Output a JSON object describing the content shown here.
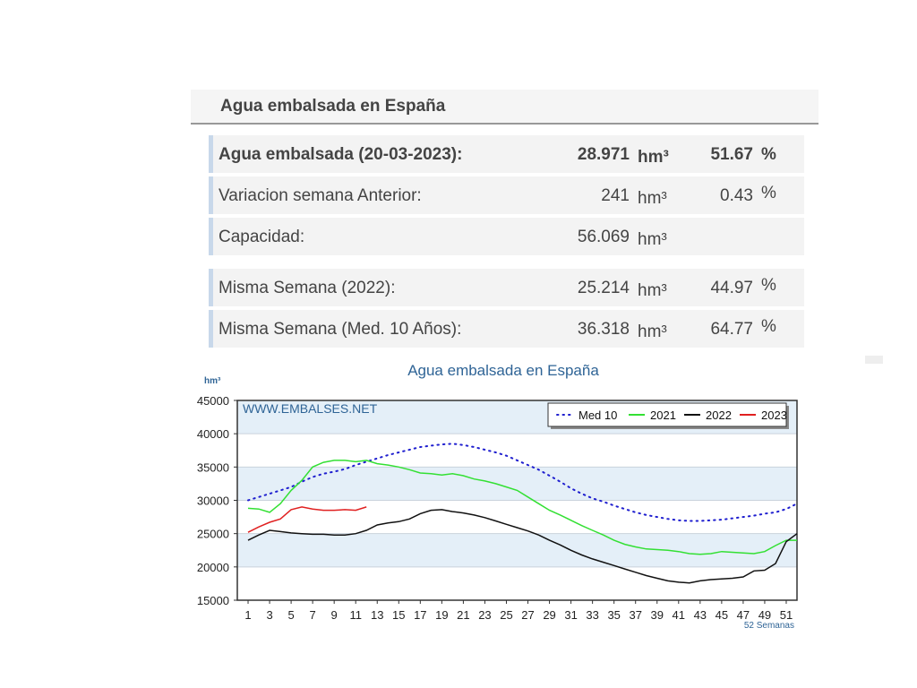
{
  "header": {
    "title": "Agua embalsada en España"
  },
  "table": {
    "rows": [
      {
        "label": "Agua embalsada (20-03-2023):",
        "value": "28.971",
        "unit": "hm³",
        "percent": "51.67",
        "percent_unit": "%"
      },
      {
        "label": "Variacion semana Anterior:",
        "value": "241",
        "unit": "hm³",
        "percent": "0.43",
        "percent_unit": "%"
      },
      {
        "label": "Capacidad:",
        "value": "56.069",
        "unit": "hm³"
      },
      {
        "label": "Misma Semana (2022):",
        "value": "25.214",
        "unit": "hm³",
        "percent": "44.97",
        "percent_unit": "%"
      },
      {
        "label": "Misma Semana (Med. 10 Años):",
        "value": "36.318",
        "unit": "hm³",
        "percent": "64.77",
        "percent_unit": "%"
      }
    ]
  },
  "chart_data": {
    "type": "line",
    "title": "Agua embalsada en España",
    "y_label": "hm³",
    "x_label": "52 Semanas",
    "annotation": "WWW.EMBALSES.NET",
    "x": [
      1,
      2,
      3,
      4,
      5,
      6,
      7,
      8,
      9,
      10,
      11,
      12,
      13,
      14,
      15,
      16,
      17,
      18,
      19,
      20,
      21,
      22,
      23,
      24,
      25,
      26,
      27,
      28,
      29,
      30,
      31,
      32,
      33,
      34,
      35,
      36,
      37,
      38,
      39,
      40,
      41,
      42,
      43,
      44,
      45,
      46,
      47,
      48,
      49,
      50,
      51,
      52
    ],
    "xlim": [
      0,
      52
    ],
    "xticks": [
      1,
      3,
      5,
      7,
      9,
      11,
      13,
      15,
      17,
      19,
      21,
      23,
      25,
      27,
      29,
      31,
      33,
      35,
      37,
      39,
      41,
      43,
      45,
      47,
      49,
      51
    ],
    "ylim": [
      15000,
      45000
    ],
    "yticks": [
      15000,
      20000,
      25000,
      30000,
      35000,
      40000,
      45000
    ],
    "grid": true,
    "legend": "top-right",
    "series": [
      {
        "name": "Med 10",
        "color": "#1f1fcf",
        "style": "dotted",
        "values": [
          30000,
          30500,
          31000,
          31500,
          32000,
          32800,
          33500,
          34000,
          34300,
          34700,
          35300,
          35800,
          36300,
          36800,
          37200,
          37600,
          38000,
          38200,
          38400,
          38500,
          38300,
          38000,
          37600,
          37200,
          36700,
          36000,
          35300,
          34600,
          33700,
          32800,
          31800,
          31000,
          30300,
          29800,
          29200,
          28700,
          28200,
          27800,
          27500,
          27200,
          27000,
          26900,
          26900,
          27000,
          27100,
          27300,
          27500,
          27700,
          28000,
          28200,
          28700,
          29500
        ]
      },
      {
        "name": "2021",
        "color": "#33e033",
        "style": "solid",
        "values": [
          28800,
          28700,
          28200,
          29500,
          31500,
          33000,
          35000,
          35700,
          36000,
          36000,
          35800,
          36000,
          35500,
          35300,
          35000,
          34600,
          34100,
          34000,
          33800,
          34000,
          33700,
          33200,
          32900,
          32500,
          32000,
          31500,
          30500,
          29500,
          28500,
          27800,
          27000,
          26200,
          25500,
          24800,
          24000,
          23400,
          23000,
          22700,
          22600,
          22500,
          22300,
          22000,
          21900,
          22000,
          22300,
          22200,
          22100,
          22000,
          22300,
          23200,
          24000,
          24000
        ]
      },
      {
        "name": "2022",
        "color": "#111111",
        "style": "solid",
        "values": [
          24000,
          24800,
          25500,
          25300,
          25100,
          25000,
          24900,
          24900,
          24800,
          24800,
          25000,
          25500,
          26300,
          26600,
          26800,
          27200,
          28000,
          28500,
          28600,
          28300,
          28100,
          27800,
          27400,
          26900,
          26400,
          25900,
          25400,
          24800,
          24000,
          23300,
          22500,
          21800,
          21200,
          20700,
          20200,
          19700,
          19200,
          18700,
          18300,
          17900,
          17700,
          17600,
          17900,
          18100,
          18200,
          18300,
          18500,
          19400,
          19500,
          20500,
          23800,
          25000
        ]
      },
      {
        "name": "2023",
        "color": "#e02020",
        "style": "solid",
        "values": [
          25200,
          26000,
          26700,
          27200,
          28600,
          29000,
          28700,
          28500,
          28500,
          28600,
          28500,
          29000,
          null,
          null,
          null,
          null,
          null,
          null,
          null,
          null,
          null,
          null,
          null,
          null,
          null,
          null,
          null,
          null,
          null,
          null,
          null,
          null,
          null,
          null,
          null,
          null,
          null,
          null,
          null,
          null,
          null,
          null,
          null,
          null,
          null,
          null,
          null,
          null,
          null,
          null,
          null,
          null
        ]
      }
    ]
  }
}
